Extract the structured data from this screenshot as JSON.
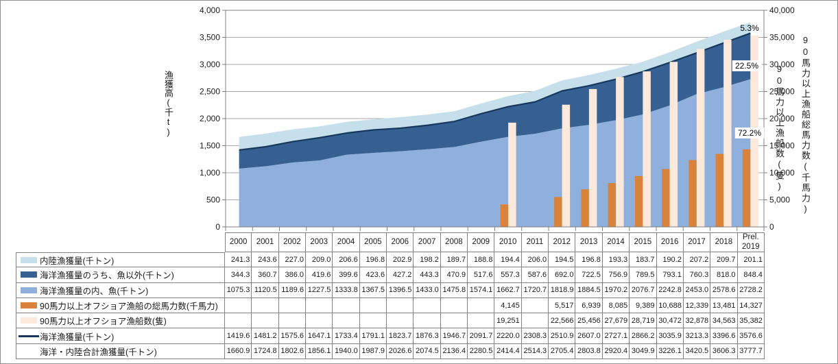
{
  "chart_data": {
    "type": "combo",
    "x_categories": [
      "2000",
      "2001",
      "2002",
      "2003",
      "2004",
      "2005",
      "2006",
      "2007",
      "2008",
      "2009",
      "2010",
      "2011",
      "2012",
      "2013",
      "2014",
      "2015",
      "2016",
      "2017",
      "2018",
      "Prel. 2019"
    ],
    "left_axis": {
      "title": "漁獲高(千t)",
      "min": 0,
      "max": 4000,
      "step": 500
    },
    "right_axis": {
      "title_outer": "90馬力以上漁船総馬力数(千馬力)",
      "title_inner": "90馬力以上漁船数(隻)",
      "min": 0,
      "max": 40000,
      "step": 5000
    },
    "grid": true,
    "series": [
      {
        "name": "海洋漁獲量の内、魚(千トン)",
        "type": "area",
        "axis": "left",
        "color": "#8fb0dd",
        "values": [
          1075.3,
          1120.5,
          1189.6,
          1227.5,
          1333.8,
          1367.5,
          1396.5,
          1433.0,
          1475.8,
          1574.1,
          1662.7,
          1720.7,
          1818.9,
          1884.5,
          1970.2,
          2076.7,
          2242.8,
          2453.0,
          2578.6,
          2728.2
        ]
      },
      {
        "name": "海洋漁獲量のうち、魚以外(千トン)",
        "type": "area",
        "axis": "left",
        "color": "#366092",
        "values": [
          344.3,
          360.7,
          386.0,
          419.6,
          399.6,
          423.6,
          427.2,
          443.3,
          470.9,
          517.6,
          557.3,
          587.6,
          692.0,
          722.5,
          756.9,
          789.5,
          793.1,
          760.3,
          818.0,
          848.4
        ]
      },
      {
        "name": "内陸漁獲量(千トン)",
        "type": "area",
        "axis": "left",
        "color": "#c5e0eb",
        "values": [
          241.3,
          243.6,
          227.0,
          209.0,
          206.6,
          196.8,
          202.9,
          198.2,
          189.7,
          188.8,
          194.4,
          206.0,
          194.5,
          196.8,
          193.3,
          183.7,
          190.2,
          207.2,
          209.7,
          201.1
        ]
      },
      {
        "name": "90馬力以上オフショア漁船の総馬力数(千馬力)",
        "type": "bar",
        "axis": "right",
        "color": "#d9823c",
        "values": [
          null,
          null,
          null,
          null,
          null,
          null,
          null,
          null,
          null,
          null,
          4145,
          null,
          5517,
          6939,
          8085,
          9389,
          10688,
          12339,
          13481,
          14327
        ]
      },
      {
        "name": "90馬力以上オフショア漁船数(隻)",
        "type": "bar",
        "axis": "right",
        "color": "#fce9db",
        "values": [
          null,
          null,
          null,
          null,
          null,
          null,
          null,
          null,
          null,
          null,
          19251,
          null,
          22566,
          25456,
          27679,
          28719,
          30472,
          32878,
          34563,
          35382
        ]
      },
      {
        "name": "海洋漁獲量(千トン)",
        "type": "line",
        "axis": "left",
        "color": "#17375d",
        "values": [
          1419.6,
          1481.2,
          1575.6,
          1647.1,
          1733.4,
          1791.1,
          1823.7,
          1876.3,
          1946.7,
          2091.7,
          2220.0,
          2308.3,
          2510.9,
          2607.0,
          2727.1,
          2866.2,
          3035.9,
          3213.3,
          3396.6,
          3576.6
        ]
      }
    ],
    "annotations": [
      {
        "text": "5.3%",
        "x": 1092,
        "y": 40,
        "bg": null
      },
      {
        "text": "22.5%",
        "x": 1088,
        "y": 95,
        "bg": "#ffffff"
      },
      {
        "text": "72.2%",
        "x": 1092,
        "y": 193,
        "bg": "#ffffff"
      }
    ]
  },
  "table": {
    "rows": [
      {
        "label": "内陸漁獲量(千トン)",
        "swatch": "rect",
        "color": "#c5e0eb",
        "format": "1dp",
        "values": [
          241.3,
          243.6,
          227.0,
          209.0,
          206.6,
          196.8,
          202.9,
          198.2,
          189.7,
          188.8,
          194.4,
          206.0,
          194.5,
          196.8,
          193.3,
          183.7,
          190.2,
          207.2,
          209.7,
          201.1
        ]
      },
      {
        "label": "海洋漁獲量のうち、魚以外(千トン)",
        "swatch": "rect",
        "color": "#366092",
        "format": "1dp",
        "values": [
          344.3,
          360.7,
          386.0,
          419.6,
          399.6,
          423.6,
          427.2,
          443.3,
          470.9,
          517.6,
          557.3,
          587.6,
          692.0,
          722.5,
          756.9,
          789.5,
          793.1,
          760.3,
          818.0,
          848.4
        ]
      },
      {
        "label": "海洋漁獲量の内、魚(千トン)",
        "swatch": "rect",
        "color": "#8fb0dd",
        "format": "1dp",
        "values": [
          1075.3,
          1120.5,
          1189.6,
          1227.5,
          1333.8,
          1367.5,
          1396.5,
          1433.0,
          1475.8,
          1574.1,
          1662.7,
          1720.7,
          1818.9,
          1884.5,
          1970.2,
          2076.7,
          2242.8,
          2453.0,
          2578.6,
          2728.2
        ]
      },
      {
        "label": "90馬力以上オフショア漁船の総馬力数(千馬力)",
        "swatch": "rect",
        "color": "#d9823c",
        "format": "int",
        "values": [
          null,
          null,
          null,
          null,
          null,
          null,
          null,
          null,
          null,
          null,
          4145,
          null,
          5517,
          6939,
          8085,
          9389,
          10688,
          12339,
          13481,
          14327
        ]
      },
      {
        "label": "90馬力以上オフショア漁船数(隻)",
        "swatch": "rect",
        "color": "#fce9db",
        "format": "int",
        "values": [
          null,
          null,
          null,
          null,
          null,
          null,
          null,
          null,
          null,
          null,
          19251,
          null,
          22566,
          25456,
          27679,
          28719,
          30472,
          32878,
          34563,
          35382
        ]
      },
      {
        "label": "海洋漁獲量(千トン)",
        "swatch": "line",
        "color": "#17375d",
        "format": "1dp",
        "values": [
          1419.6,
          1481.2,
          1575.6,
          1647.1,
          1733.4,
          1791.1,
          1823.7,
          1876.3,
          1946.7,
          2091.7,
          2220.0,
          2308.3,
          2510.9,
          2607.0,
          2727.1,
          2866.2,
          3035.9,
          3213.3,
          3396.6,
          3576.6
        ]
      },
      {
        "label": "海洋・内陸合計漁獲量(千トン)",
        "swatch": "none",
        "color": null,
        "format": "1dp",
        "values": [
          1660.9,
          1724.8,
          1802.6,
          1856.1,
          1940.0,
          1987.9,
          2026.6,
          2074.5,
          2136.4,
          2280.5,
          2414.4,
          2514.3,
          2705.4,
          2803.8,
          2920.4,
          3049.9,
          3226.1,
          3420.5,
          3606.3,
          3777.7
        ]
      }
    ]
  }
}
